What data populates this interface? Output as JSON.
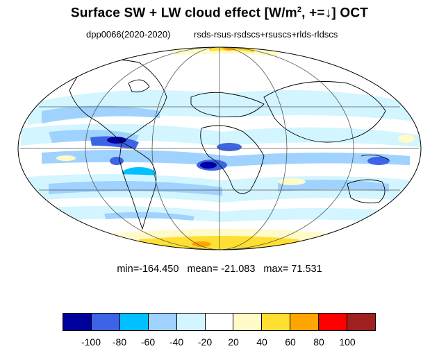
{
  "title": {
    "main": "Surface SW + LW cloud effect [W/m",
    "sup": "2",
    "rest": ", +=↓]  OCT"
  },
  "subtitle": {
    "left": "dpp0066(2020-2020)",
    "right": "rsds-rsus-rsdscs+rsuscs+rlds-rldscs"
  },
  "stats": {
    "min": "min=-164.450",
    "mean": "mean= -21.083",
    "max": "max=  71.531"
  },
  "colorbar": {
    "colors": [
      "#00009f",
      "#3d64e6",
      "#00c0ff",
      "#a0d2ff",
      "#d2f5ff",
      "#ffffff",
      "#fffac8",
      "#ffe032",
      "#ffa500",
      "#ff0000",
      "#a02020"
    ],
    "tick_labels": [
      "-100",
      "-80",
      "-60",
      "-40",
      "-20",
      "20",
      "40",
      "60",
      "80",
      "100"
    ]
  }
}
